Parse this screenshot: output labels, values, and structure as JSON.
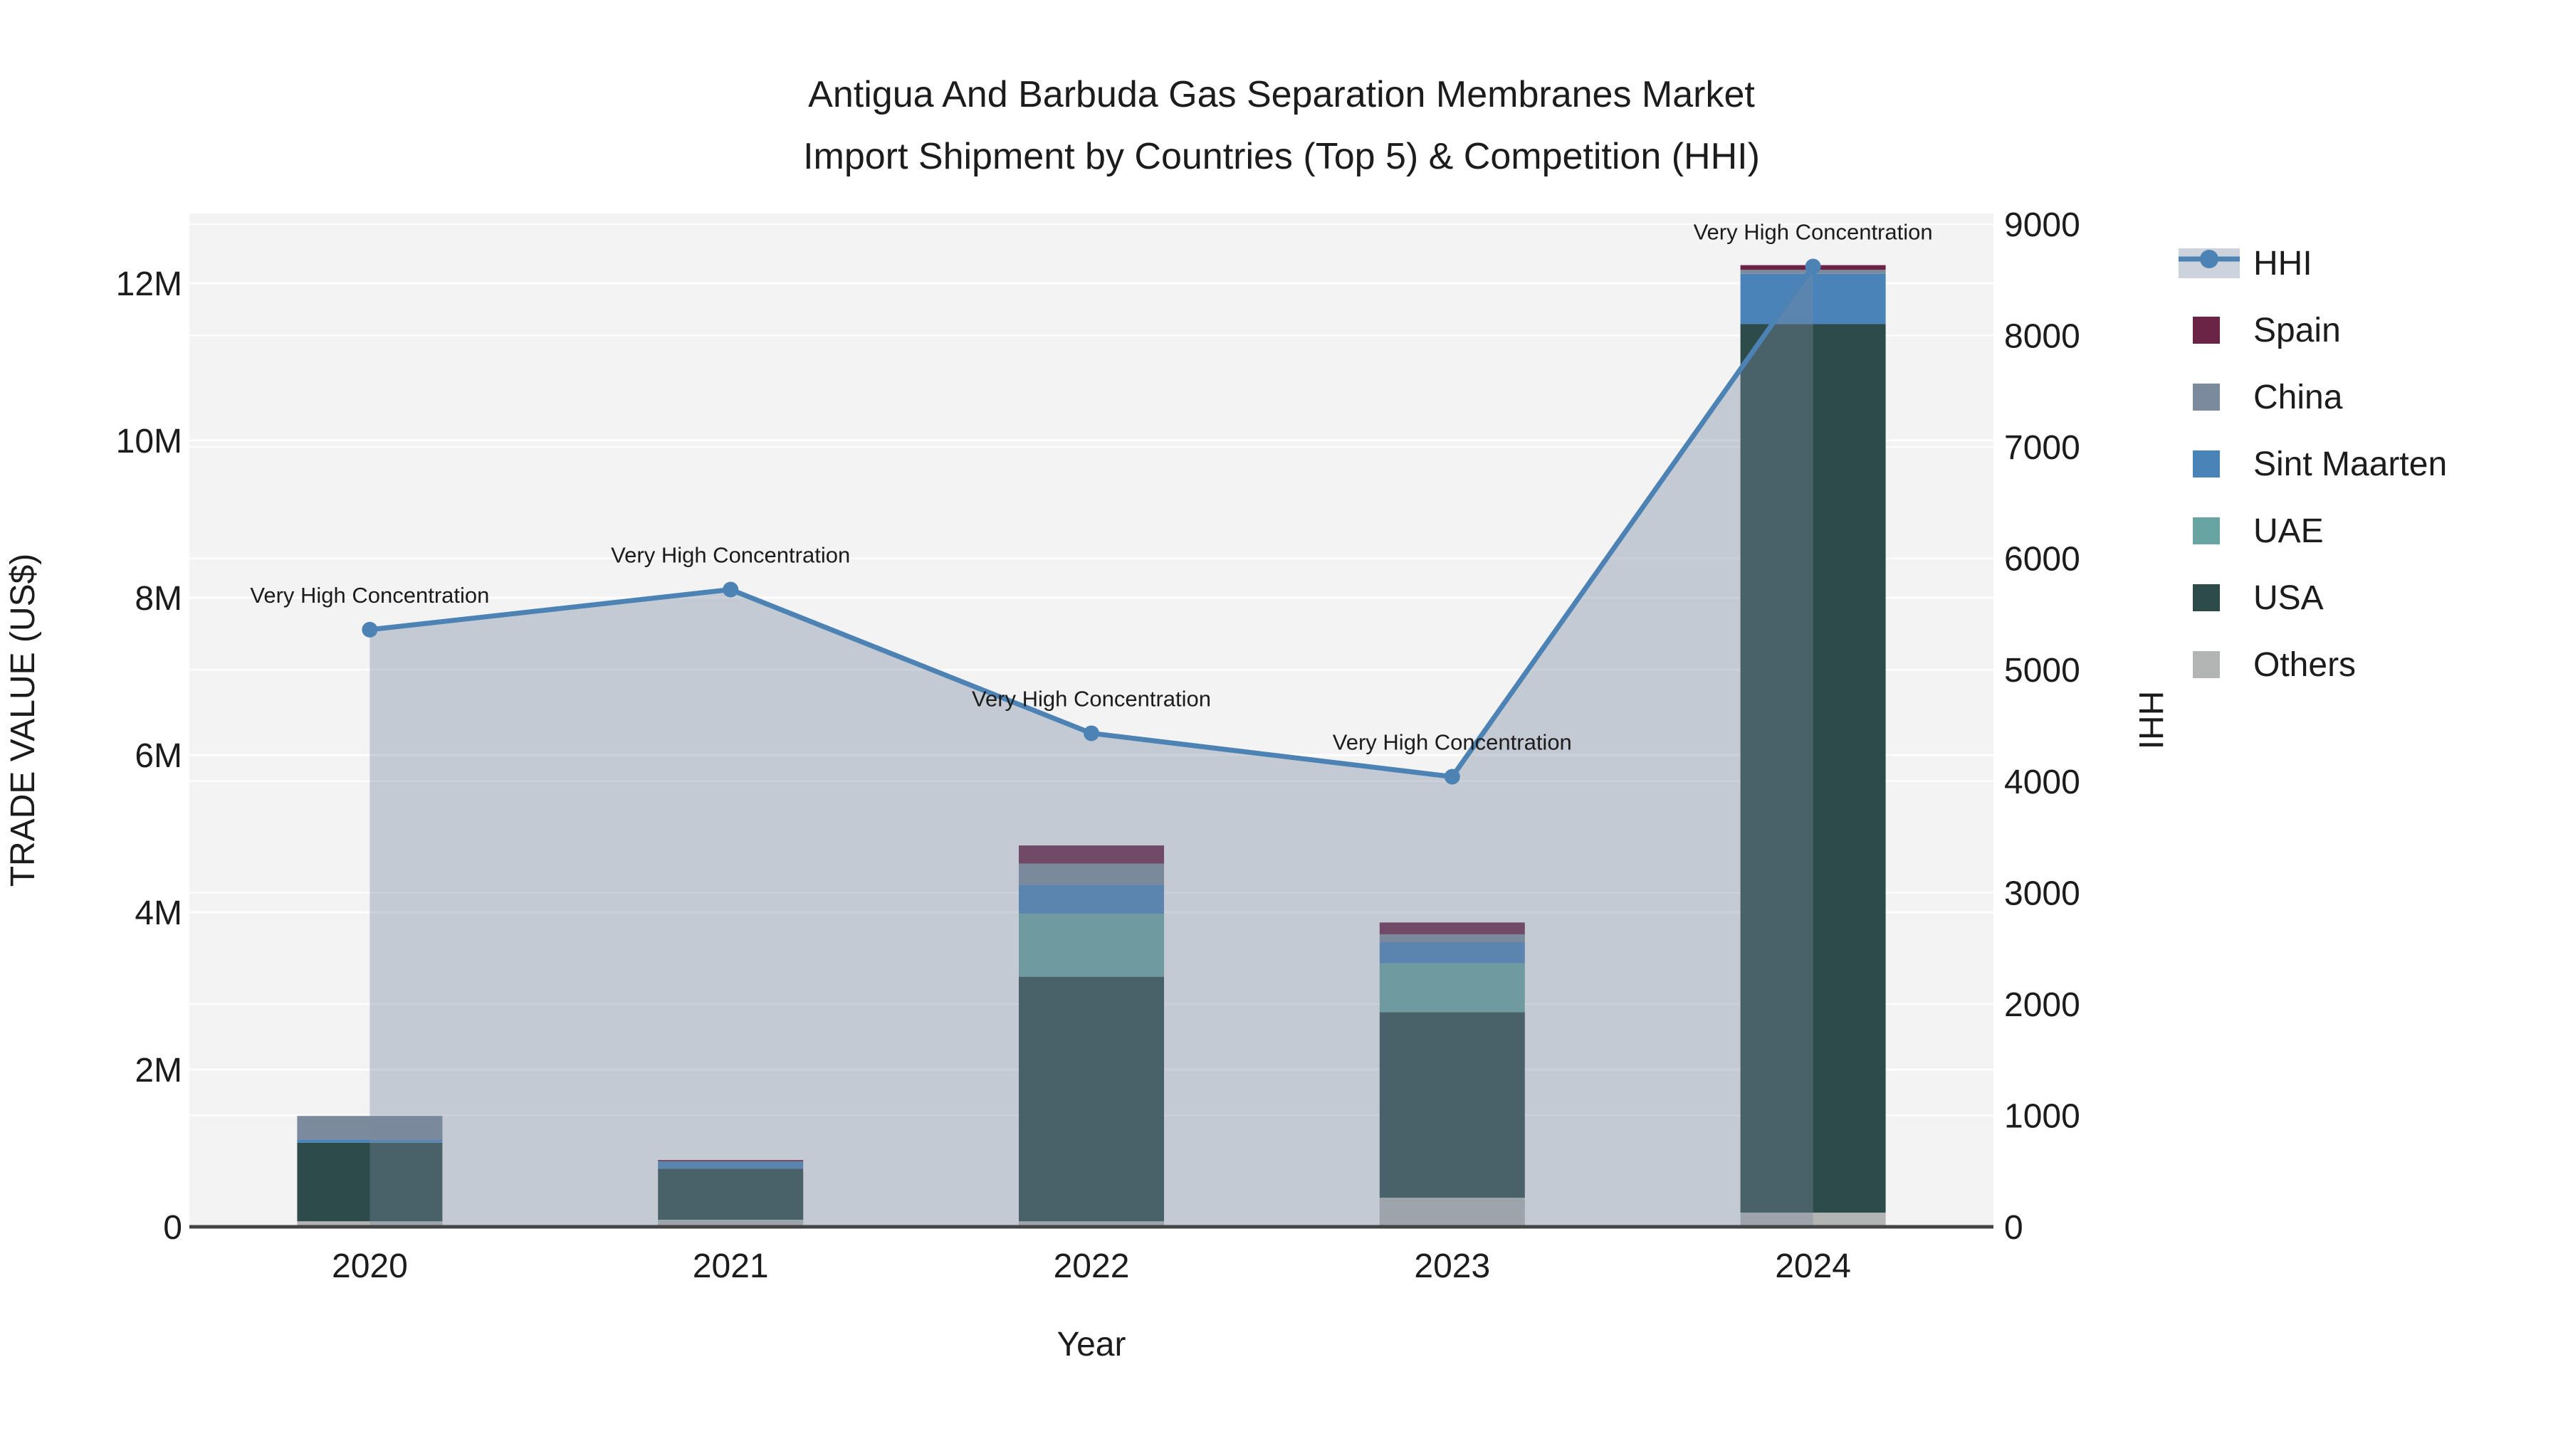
{
  "title": {
    "line1": "Antigua And Barbuda Gas Separation Membranes Market",
    "line2": "Import Shipment by Countries (Top 5) & Competition (HHI)"
  },
  "chart_data": {
    "type": "bar+line",
    "categories": [
      "2020",
      "2021",
      "2022",
      "2023",
      "2024"
    ],
    "xlabel": "Year",
    "ylabel_left": "TRADE VALUE (US$)",
    "ylabel_right": "HHI",
    "y_left": {
      "tick_labels": [
        "0",
        "2M",
        "4M",
        "6M",
        "8M",
        "10M",
        "12M"
      ],
      "tick_values": [
        0,
        2000000,
        4000000,
        6000000,
        8000000,
        10000000,
        12000000
      ],
      "min": 0,
      "max": 12000000
    },
    "y_right": {
      "tick_labels": [
        "0",
        "1000",
        "2000",
        "3000",
        "4000",
        "5000",
        "6000",
        "7000",
        "8000",
        "9000"
      ],
      "tick_values": [
        0,
        1000,
        2000,
        3000,
        4000,
        5000,
        6000,
        7000,
        8000,
        9000
      ],
      "min": 0,
      "max": 9000
    },
    "bar_series_bottom_to_top": [
      {
        "name": "Others",
        "color": "#b3b5b4",
        "values": [
          70000,
          90000,
          70000,
          370000,
          180000
        ]
      },
      {
        "name": "USA",
        "color": "#2d4b49",
        "values": [
          1000000,
          650000,
          3110000,
          2360000,
          11300000
        ]
      },
      {
        "name": "UAE",
        "color": "#68a5a2",
        "values": [
          0,
          0,
          800000,
          620000,
          0
        ]
      },
      {
        "name": "Sint Maarten",
        "color": "#4a83b8",
        "values": [
          40000,
          90000,
          370000,
          270000,
          640000
        ]
      },
      {
        "name": "China",
        "color": "#7b8a9c",
        "values": [
          300000,
          0,
          270000,
          100000,
          50000
        ]
      },
      {
        "name": "Spain",
        "color": "#6c2446",
        "values": [
          0,
          20000,
          230000,
          150000,
          60000
        ]
      }
    ],
    "hhi": {
      "name": "HHI",
      "line_color": "#4d82b4",
      "area_fill": "rgba(120,136,158,0.38)",
      "legend_band_color": "#ccd3dc",
      "values": [
        5360,
        5720,
        4430,
        4040,
        8620
      ],
      "annotations": [
        "Very High Concentration",
        "Very High Concentration",
        "Very High Concentration",
        "Very High Concentration",
        "Very High Concentration"
      ]
    },
    "legend_order": [
      "HHI",
      "Spain",
      "China",
      "Sint Maarten",
      "UAE",
      "USA",
      "Others"
    ],
    "grid": true,
    "legend_position": "right"
  },
  "style_colors": {
    "plot_bg": "#f3f3f4",
    "grid_line": "#ffffff",
    "axis_line": "#444444",
    "text": "#1c1c1c"
  }
}
